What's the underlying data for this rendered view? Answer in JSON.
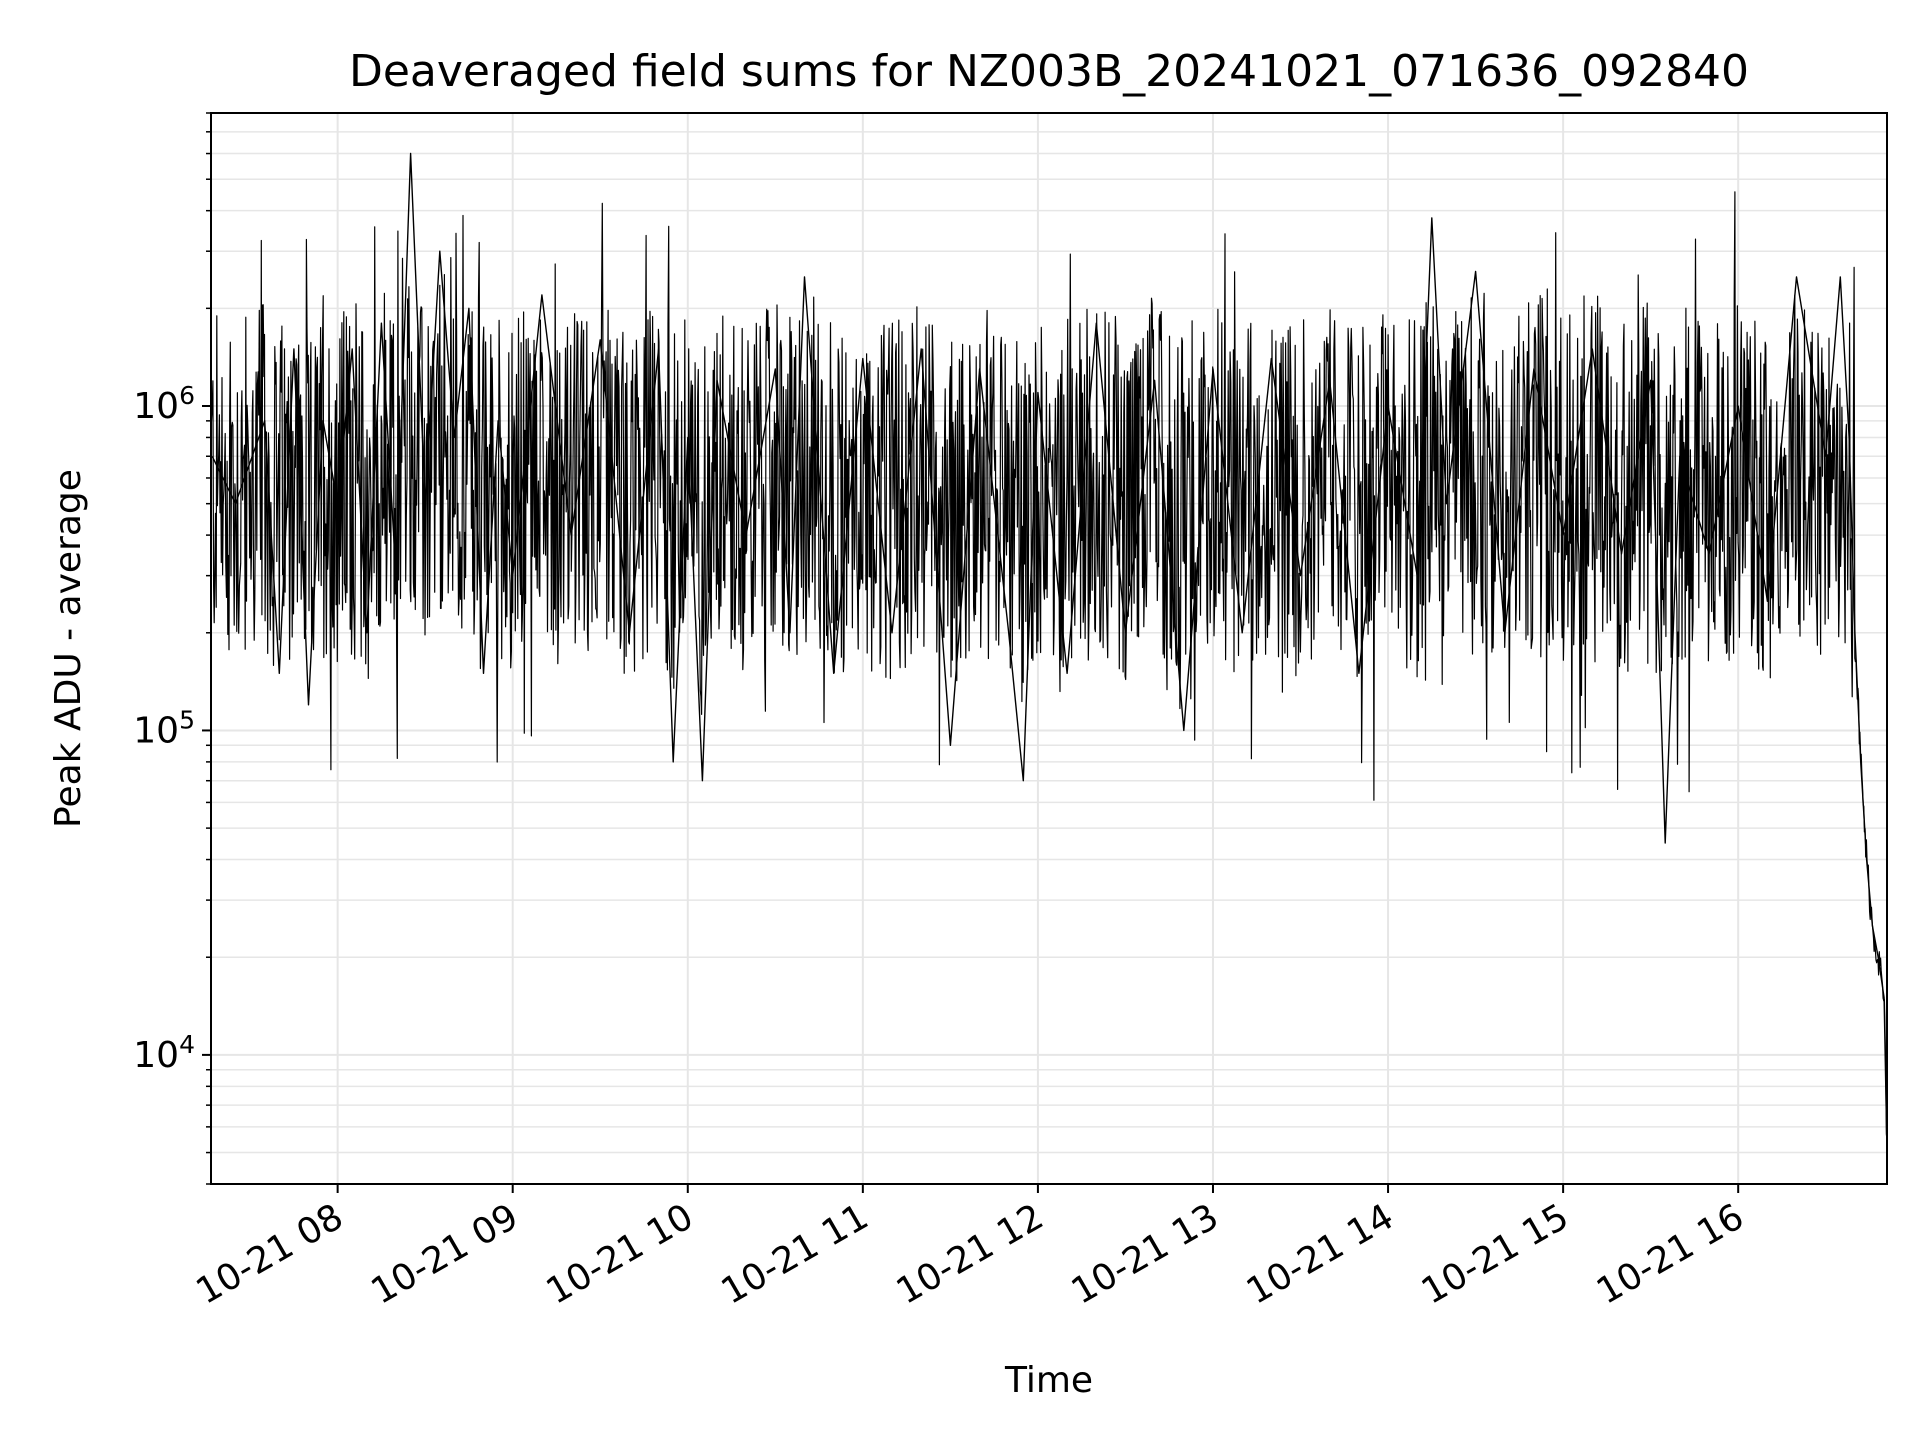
{
  "chart_data": {
    "type": "line",
    "title": "Deaveraged field sums for NZ003B_20241021_071636_092840",
    "xlabel": "Time",
    "ylabel": "Peak ADU - average",
    "yscale": "log",
    "ylim": [
      4000,
      8000000
    ],
    "xlim": [
      "2024-10-21 07:16:36",
      "2024-10-21 16:51:00"
    ],
    "grid": true,
    "line_color": "#000000",
    "grid_color": "#e6e6e6",
    "x_ticks": [
      {
        "value": "2024-10-21 08:00",
        "label": "10-21 08"
      },
      {
        "value": "2024-10-21 09:00",
        "label": "10-21 09"
      },
      {
        "value": "2024-10-21 10:00",
        "label": "10-21 10"
      },
      {
        "value": "2024-10-21 11:00",
        "label": "10-21 11"
      },
      {
        "value": "2024-10-21 12:00",
        "label": "10-21 12"
      },
      {
        "value": "2024-10-21 13:00",
        "label": "10-21 13"
      },
      {
        "value": "2024-10-21 14:00",
        "label": "10-21 14"
      },
      {
        "value": "2024-10-21 15:00",
        "label": "10-21 15"
      },
      {
        "value": "2024-10-21 16:00",
        "label": "10-21 16"
      }
    ],
    "y_ticks": [
      {
        "value": 10000,
        "base": "10",
        "exp": "4"
      },
      {
        "value": 100000,
        "base": "10",
        "exp": "5"
      },
      {
        "value": 1000000,
        "base": "10",
        "exp": "6"
      }
    ],
    "series": [
      {
        "x": [
          "2024-10-21 07:17",
          "2024-10-21 07:25",
          "2024-10-21 07:35",
          "2024-10-21 07:40",
          "2024-10-21 07:45",
          "2024-10-21 07:50",
          "2024-10-21 07:55",
          "2024-10-21 08:00",
          "2024-10-21 08:05",
          "2024-10-21 08:10",
          "2024-10-21 08:15",
          "2024-10-21 08:20",
          "2024-10-21 08:25",
          "2024-10-21 08:30",
          "2024-10-21 08:35",
          "2024-10-21 08:40",
          "2024-10-21 08:45",
          "2024-10-21 08:50",
          "2024-10-21 08:55",
          "2024-10-21 09:00",
          "2024-10-21 09:10",
          "2024-10-21 09:20",
          "2024-10-21 09:30",
          "2024-10-21 09:40",
          "2024-10-21 09:50",
          "2024-10-21 09:55",
          "2024-10-21 10:00",
          "2024-10-21 10:05",
          "2024-10-21 10:10",
          "2024-10-21 10:20",
          "2024-10-21 10:30",
          "2024-10-21 10:35",
          "2024-10-21 10:40",
          "2024-10-21 10:50",
          "2024-10-21 11:00",
          "2024-10-21 11:10",
          "2024-10-21 11:20",
          "2024-10-21 11:30",
          "2024-10-21 11:40",
          "2024-10-21 11:50",
          "2024-10-21 11:55",
          "2024-10-21 12:00",
          "2024-10-21 12:10",
          "2024-10-21 12:20",
          "2024-10-21 12:30",
          "2024-10-21 12:40",
          "2024-10-21 12:50",
          "2024-10-21 13:00",
          "2024-10-21 13:10",
          "2024-10-21 13:20",
          "2024-10-21 13:30",
          "2024-10-21 13:40",
          "2024-10-21 13:50",
          "2024-10-21 14:00",
          "2024-10-21 14:10",
          "2024-10-21 14:15",
          "2024-10-21 14:20",
          "2024-10-21 14:30",
          "2024-10-21 14:40",
          "2024-10-21 14:50",
          "2024-10-21 15:00",
          "2024-10-21 15:10",
          "2024-10-21 15:20",
          "2024-10-21 15:30",
          "2024-10-21 15:35",
          "2024-10-21 15:40",
          "2024-10-21 15:50",
          "2024-10-21 16:00",
          "2024-10-21 16:10",
          "2024-10-21 16:20",
          "2024-10-21 16:30",
          "2024-10-21 16:35",
          "2024-10-21 16:38",
          "2024-10-21 16:40",
          "2024-10-21 16:42",
          "2024-10-21 16:44",
          "2024-10-21 16:46",
          "2024-10-21 16:48",
          "2024-10-21 16:50",
          "2024-10-21 16:51"
        ],
        "y": [
          700000,
          500000,
          900000,
          150000,
          1500000,
          120000,
          900000,
          500000,
          1500000,
          200000,
          1800000,
          300000,
          6000000,
          500000,
          3000000,
          800000,
          2000000,
          150000,
          900000,
          300000,
          2200000,
          400000,
          1600000,
          200000,
          1500000,
          80000,
          800000,
          70000,
          1200000,
          400000,
          1300000,
          200000,
          2500000,
          150000,
          1400000,
          200000,
          1500000,
          90000,
          1300000,
          200000,
          70000,
          1100000,
          150000,
          1800000,
          200000,
          1200000,
          100000,
          1300000,
          200000,
          1400000,
          300000,
          1200000,
          150000,
          1000000,
          300000,
          3800000,
          500000,
          2600000,
          200000,
          1300000,
          400000,
          1500000,
          350000,
          1200000,
          45000,
          700000,
          350000,
          1000000,
          250000,
          2500000,
          700000,
          2500000,
          800000,
          200000,
          80000,
          40000,
          25000,
          20000,
          15000,
          5000
        ]
      }
    ]
  }
}
